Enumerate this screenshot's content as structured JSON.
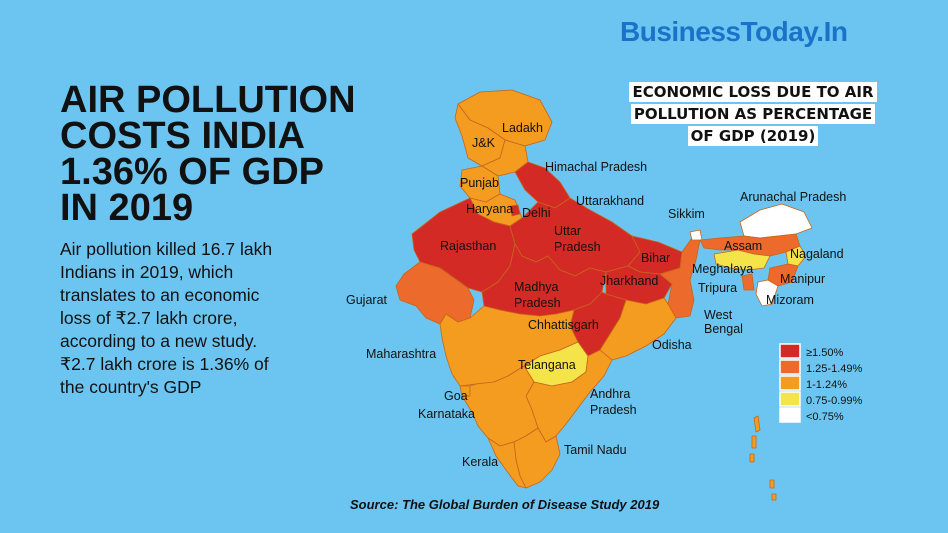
{
  "brand": "BusinessToday.In",
  "headline": [
    "AIR POLLUTION",
    "COSTS INDIA",
    "1.36% OF GDP",
    "IN 2019"
  ],
  "body": [
    "Air pollution killed 16.7 lakh",
    "Indians in 2019, which",
    "translates to an economic",
    "loss of ₹2.7 lakh crore,",
    "according to a new study.",
    "₹2.7 lakh crore is 1.36% of",
    "the country's GDP"
  ],
  "map_title": [
    "ECONOMIC LOSS DUE TO AIR",
    "POLLUTION AS PERCENTAGE",
    "OF GDP (2019)"
  ],
  "source": "Source: The Global Burden of Disease Study 2019",
  "colors": {
    "background": "#6cc5f0",
    "brand": "#1a73c9",
    "ge_1_50": "#d32a26",
    "r_1_25_1_49": "#ec6a2c",
    "r_1_1_24": "#f39c1f",
    "r_0_75_0_99": "#f5e34a",
    "lt_0_75": "#ffffff"
  },
  "legend": [
    {
      "label": "≥1.50%",
      "color": "#d32a26"
    },
    {
      "label": "1.25-1.49%",
      "color": "#ec6a2c"
    },
    {
      "label": "1-1.24%",
      "color": "#f39c1f"
    },
    {
      "label": "0.75-0.99%",
      "color": "#f5e34a"
    },
    {
      "label": "<0.75%",
      "color": "#ffffff"
    }
  ],
  "states": {
    "ladakh": {
      "name": "Ladakh",
      "band": "1-1.24%"
    },
    "jk": {
      "name": "J&K",
      "band": "1-1.24%"
    },
    "himachal": {
      "name": "Himachal Pradesh",
      "band": "1-1.24%"
    },
    "punjab": {
      "name": "Punjab",
      "band": "1-1.24%"
    },
    "uttarakhand": {
      "name": "Uttarakhand",
      "band": "≥1.50%"
    },
    "haryana": {
      "name": "Haryana",
      "band": "1-1.24%"
    },
    "delhi": {
      "name": "Delhi",
      "band": "≥1.50%"
    },
    "rajasthan": {
      "name": "Rajasthan",
      "band": "≥1.50%"
    },
    "up": {
      "name": "Uttar Pradesh",
      "band": "≥1.50%"
    },
    "bihar": {
      "name": "Bihar",
      "band": "≥1.50%"
    },
    "sikkim": {
      "name": "Sikkim",
      "band": "<0.75%"
    },
    "arunachal": {
      "name": "Arunachal Pradesh",
      "band": "<0.75%"
    },
    "assam": {
      "name": "Assam",
      "band": "1.25-1.49%"
    },
    "nagaland": {
      "name": "Nagaland",
      "band": "0.75-0.99%"
    },
    "meghalaya": {
      "name": "Meghalaya",
      "band": "0.75-0.99%"
    },
    "manipur": {
      "name": "Manipur",
      "band": "1.25-1.49%"
    },
    "mizoram": {
      "name": "Mizoram",
      "band": "<0.75%"
    },
    "tripura": {
      "name": "Tripura",
      "band": "1.25-1.49%"
    },
    "gujarat": {
      "name": "Gujarat",
      "band": "1.25-1.49%"
    },
    "mp": {
      "name": "Madhya Pradesh",
      "band": "≥1.50%"
    },
    "jharkhand": {
      "name": "Jharkhand",
      "band": "≥1.50%"
    },
    "wb": {
      "name": "West Bengal",
      "band": "1.25-1.49%"
    },
    "chhattisgarh": {
      "name": "Chhattisgarh",
      "band": "≥1.50%"
    },
    "odisha": {
      "name": "Odisha",
      "band": "1-1.24%"
    },
    "maharashtra": {
      "name": "Maharashtra",
      "band": "1-1.24%"
    },
    "telangana": {
      "name": "Telangana",
      "band": "0.75-0.99%"
    },
    "ap": {
      "name": "Andhra Pradesh",
      "band": "1-1.24%"
    },
    "goa": {
      "name": "Goa",
      "band": "1-1.24%"
    },
    "karnataka": {
      "name": "Karnataka",
      "band": "1-1.24%"
    },
    "tn": {
      "name": "Tamil Nadu",
      "band": "1-1.24%"
    },
    "kerala": {
      "name": "Kerala",
      "band": "1-1.24%"
    }
  },
  "state_labels": {
    "uttar_pradesh": [
      "Uttar",
      "Pradesh"
    ],
    "madhya_pradesh": [
      "Madhya",
      "Pradesh"
    ],
    "west_bengal": [
      "West",
      "Bengal"
    ],
    "andhra_pradesh": [
      "Andhra",
      "Pradesh"
    ]
  }
}
